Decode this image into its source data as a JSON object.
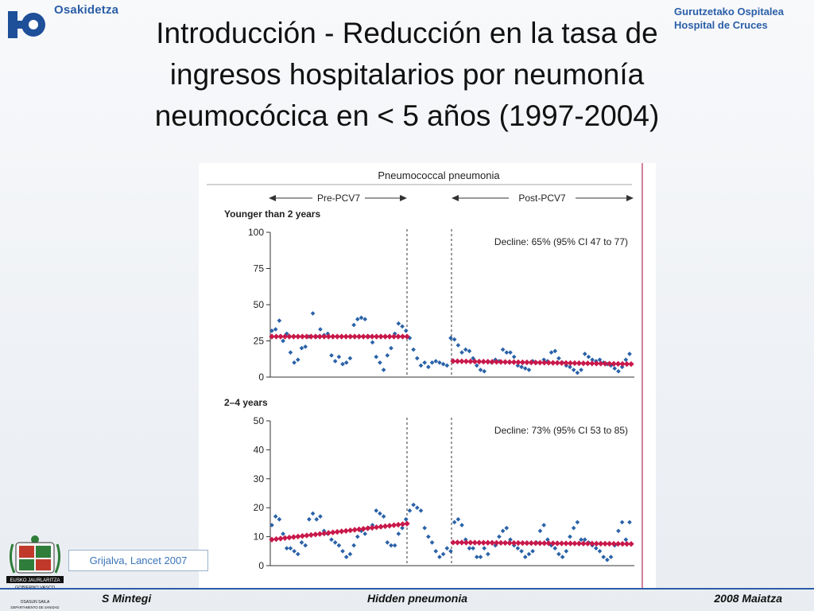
{
  "header": {
    "brand": "Osakidetza",
    "hospital_line1": "Gurutzetako Ospitalea",
    "hospital_line2": "Hospital de Cruces",
    "title_line1": "Introducción - Reducción  en la tasa de",
    "title_line2": "ingresos hospitalarios por neumonía",
    "title_line3": "neumocócica en < 5 años (1997-2004)"
  },
  "citation": "Grijalva, Lancet 2007",
  "footer": {
    "left": "S Mintegi",
    "middle": "Hidden pneumonia",
    "right": "2008 Maiatza"
  },
  "colors": {
    "points": "#2a62a8",
    "trend": "#c8184a",
    "accent": "#2a5ea8",
    "bracket": "#b0305a"
  },
  "icons": {
    "logo": "osakidetza-logo-icon",
    "crest": "basque-government-crest-icon"
  },
  "crest_text": [
    "EUSKO JAURLARITZA",
    "GOBIERNO VASCO",
    "OSASUN SAILA",
    "DEPARTAMENTO DE SANIDAD"
  ],
  "chart_data": [
    {
      "type": "scatter",
      "title": "Pneumococcal pneumonia",
      "period_labels": [
        "Pre-PCV7",
        "Post-PCV7"
      ],
      "subtitle": "Younger than 2 years",
      "ylim": [
        0,
        100
      ],
      "yticks": [
        0,
        25,
        50,
        75,
        100
      ],
      "annotation": "Decline: 65% (95% CI 47 to 77)",
      "pre_trend": [
        28,
        28
      ],
      "post_trend": [
        11,
        9
      ],
      "series": [
        {
          "values": [
            32,
            33,
            39,
            25,
            30,
            17,
            10,
            12,
            20,
            21,
            28,
            44,
            28,
            33,
            29,
            30,
            15,
            11,
            14,
            9,
            10,
            13,
            36,
            40,
            41,
            40,
            28,
            24,
            14,
            10,
            5,
            15,
            20,
            30,
            37,
            35,
            32,
            27,
            19,
            13,
            8,
            10,
            7,
            10,
            11,
            10,
            9,
            8,
            27,
            26,
            22,
            17,
            19,
            18,
            13,
            8,
            5,
            4,
            11,
            10,
            12,
            11,
            19,
            17,
            17,
            14,
            8,
            7,
            6,
            5,
            11,
            10,
            10,
            12,
            11,
            17,
            18,
            13,
            10,
            8,
            7,
            5,
            3,
            5,
            16,
            14,
            12,
            11,
            12,
            10,
            9,
            8,
            6,
            4,
            7,
            12,
            16
          ]
        }
      ]
    },
    {
      "type": "scatter",
      "subtitle": "2–4 years",
      "ylim": [
        0,
        50
      ],
      "yticks": [
        0,
        10,
        20,
        30,
        40,
        50
      ],
      "annotation": "Decline: 73% (95% CI 53 to 85)",
      "pre_trend": [
        9,
        14.5
      ],
      "post_trend": [
        8,
        7.5
      ],
      "series": [
        {
          "values": [
            14,
            17,
            16,
            11,
            6,
            6,
            5,
            4,
            8,
            7,
            16,
            18,
            16,
            17,
            12,
            11,
            9,
            8,
            7,
            5,
            3,
            4,
            7,
            10,
            12,
            11,
            13,
            14,
            19,
            18,
            17,
            8,
            7,
            7,
            11,
            13,
            16,
            19,
            21,
            20,
            19,
            13,
            10,
            8,
            5,
            3,
            4,
            6,
            5,
            15,
            16,
            14,
            9,
            6,
            6,
            3,
            3,
            6,
            4,
            8,
            7,
            10,
            12,
            13,
            9,
            7,
            6,
            5,
            3,
            4,
            5,
            8,
            12,
            14,
            9,
            7,
            6,
            4,
            3,
            5,
            10,
            13,
            15,
            9,
            9,
            8,
            7,
            6,
            5,
            3,
            2,
            3,
            7,
            12,
            15,
            9,
            15
          ]
        }
      ]
    }
  ]
}
